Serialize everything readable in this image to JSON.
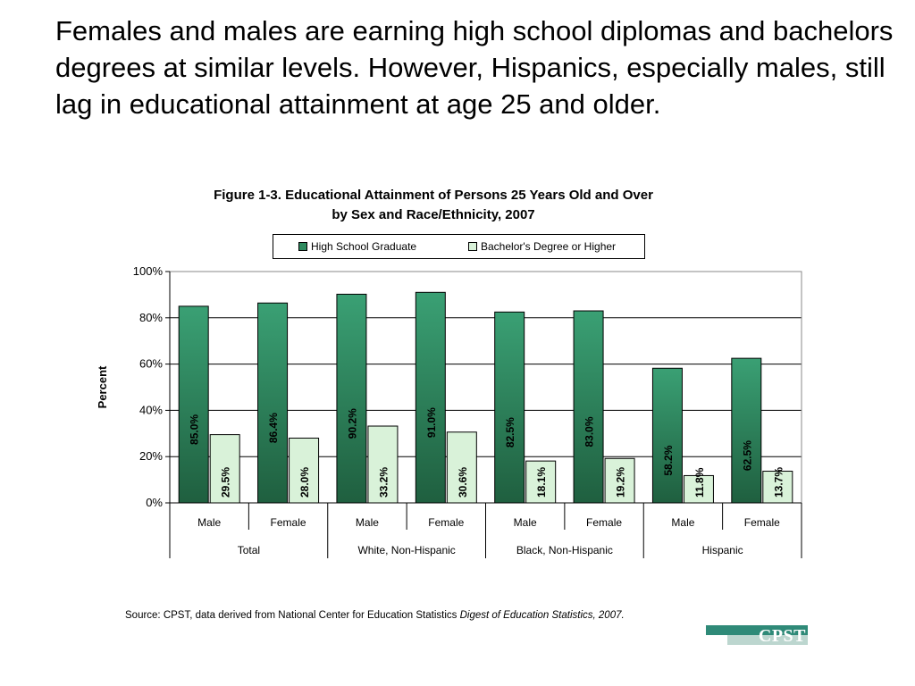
{
  "headline": "Females and males are earning high school diplomas and bachelors degrees at similar levels. However, Hispanics, especially males, still lag in educational attainment at age 25 and older.",
  "chart_data": {
    "type": "bar",
    "title_line1": "Figure 1-3. Educational Attainment of Persons 25 Years Old and Over",
    "title_line2": "by Sex and Race/Ethnicity, 2007",
    "ylabel": "Percent",
    "ylim": [
      0,
      100
    ],
    "yticks": [
      "0%",
      "20%",
      "40%",
      "60%",
      "80%",
      "100%"
    ],
    "grid": true,
    "legend_position": "top",
    "categories": [
      "Male",
      "Female",
      "Male",
      "Female",
      "Male",
      "Female",
      "Male",
      "Female"
    ],
    "groups": [
      {
        "label": "Total",
        "span": 2
      },
      {
        "label": "White, Non-Hispanic",
        "span": 2
      },
      {
        "label": "Black, Non-Hispanic",
        "span": 2
      },
      {
        "label": "Hispanic",
        "span": 2
      }
    ],
    "series": [
      {
        "name": "High School Graduate",
        "color": "#2e8b5f",
        "values": [
          85.0,
          86.4,
          90.2,
          91.0,
          82.5,
          83.0,
          58.2,
          62.5
        ],
        "labels": [
          "85.0%",
          "86.4%",
          "90.2%",
          "91.0%",
          "82.5%",
          "83.0%",
          "58.2%",
          "62.5%"
        ]
      },
      {
        "name": "Bachelor's Degree or Higher",
        "color": "#d9f2d9",
        "values": [
          29.5,
          28.0,
          33.2,
          30.6,
          18.1,
          19.2,
          11.8,
          13.7
        ],
        "labels": [
          "29.5%",
          "28.0%",
          "33.2%",
          "30.6%",
          "18.1%",
          "19.2%",
          "11.8%",
          "13.7%"
        ]
      }
    ]
  },
  "source": {
    "prefix": "Source: CPST, data derived from National Center for Education Statistics ",
    "italic": "Digest of Education Statistics, 2007."
  },
  "logo": {
    "text": "CPST",
    "primary_color": "#2f8a78",
    "secondary_color": "#bcd6cf"
  }
}
